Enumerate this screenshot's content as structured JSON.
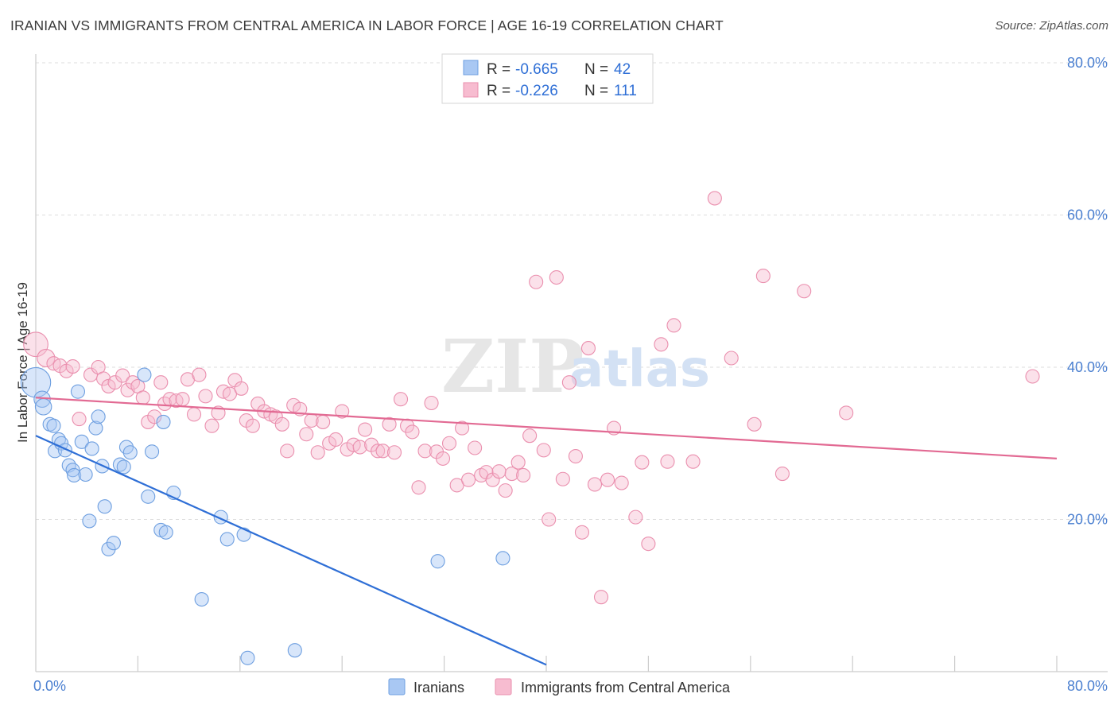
{
  "header": {
    "title": "IRANIAN VS IMMIGRANTS FROM CENTRAL AMERICA IN LABOR FORCE | AGE 16-19 CORRELATION CHART",
    "source": "Source: ZipAtlas.com"
  },
  "watermark": {
    "part1": "ZIP",
    "part2": "atlas"
  },
  "colors": {
    "iranians_fill": "#a9c8f3",
    "iranians_stroke": "#6e9fe0",
    "iranians_line": "#2f6fd6",
    "central_fill": "#f7bcd0",
    "central_stroke": "#ea8fae",
    "central_line": "#e26a93",
    "grid": "#dddddd",
    "tick_text": "#4a7fd0"
  },
  "legend": {
    "rows": [
      {
        "r_label": "R = ",
        "r_value": "-0.665",
        "n_label": "N = ",
        "n_value": "42"
      },
      {
        "r_label": "R = ",
        "r_value": "-0.226",
        "n_label": "N = ",
        "n_value": "111"
      }
    ]
  },
  "chart_data": {
    "type": "scatter",
    "title": "IRANIAN VS IMMIGRANTS FROM CENTRAL AMERICA IN LABOR FORCE | AGE 16-19 CORRELATION CHART",
    "xlabel": "",
    "ylabel": "In Labor Force | Age 16-19",
    "xlim": [
      0,
      80
    ],
    "ylim": [
      0,
      80
    ],
    "x_tick_labels": [
      "0.0%",
      "80.0%"
    ],
    "y_ticks": [
      20,
      40,
      60,
      80
    ],
    "y_tick_labels": [
      "20.0%",
      "40.0%",
      "60.0%",
      "80.0%"
    ],
    "grid": true,
    "legend_position": "top-center",
    "series": [
      {
        "name": "Iranians",
        "r": -0.665,
        "n": 42,
        "trend": {
          "x": [
            0,
            40
          ],
          "y": [
            31,
            0.9
          ]
        },
        "points": [
          {
            "x": 0.0,
            "y": 38.0,
            "s": 2.2
          },
          {
            "x": 0.5,
            "y": 35.8,
            "s": 1.2
          },
          {
            "x": 0.6,
            "y": 34.8,
            "s": 1.2
          },
          {
            "x": 1.1,
            "y": 32.5,
            "s": 1
          },
          {
            "x": 1.4,
            "y": 32.3,
            "s": 1
          },
          {
            "x": 1.5,
            "y": 29.0,
            "s": 1
          },
          {
            "x": 1.8,
            "y": 30.5,
            "s": 1
          },
          {
            "x": 2.0,
            "y": 30.0,
            "s": 1
          },
          {
            "x": 2.3,
            "y": 29.1,
            "s": 1
          },
          {
            "x": 2.6,
            "y": 27.1,
            "s": 1
          },
          {
            "x": 2.9,
            "y": 26.5,
            "s": 1
          },
          {
            "x": 3.0,
            "y": 25.8,
            "s": 1
          },
          {
            "x": 3.3,
            "y": 36.8,
            "s": 1
          },
          {
            "x": 3.6,
            "y": 30.2,
            "s": 1
          },
          {
            "x": 3.9,
            "y": 25.9,
            "s": 1
          },
          {
            "x": 4.2,
            "y": 19.8,
            "s": 1
          },
          {
            "x": 4.4,
            "y": 29.3,
            "s": 1
          },
          {
            "x": 4.7,
            "y": 32.0,
            "s": 1
          },
          {
            "x": 4.9,
            "y": 33.5,
            "s": 1
          },
          {
            "x": 5.2,
            "y": 27.0,
            "s": 1
          },
          {
            "x": 5.4,
            "y": 21.7,
            "s": 1
          },
          {
            "x": 5.7,
            "y": 16.1,
            "s": 1
          },
          {
            "x": 6.1,
            "y": 16.9,
            "s": 1
          },
          {
            "x": 6.6,
            "y": 27.2,
            "s": 1
          },
          {
            "x": 6.9,
            "y": 26.9,
            "s": 1
          },
          {
            "x": 7.1,
            "y": 29.5,
            "s": 1
          },
          {
            "x": 7.4,
            "y": 28.8,
            "s": 1
          },
          {
            "x": 8.5,
            "y": 39.0,
            "s": 1
          },
          {
            "x": 8.8,
            "y": 23.0,
            "s": 1
          },
          {
            "x": 9.1,
            "y": 28.9,
            "s": 1
          },
          {
            "x": 9.8,
            "y": 18.6,
            "s": 1
          },
          {
            "x": 10.0,
            "y": 32.8,
            "s": 1
          },
          {
            "x": 10.2,
            "y": 18.3,
            "s": 1
          },
          {
            "x": 10.8,
            "y": 23.5,
            "s": 1
          },
          {
            "x": 13.0,
            "y": 9.5,
            "s": 1
          },
          {
            "x": 14.5,
            "y": 20.3,
            "s": 1
          },
          {
            "x": 15.0,
            "y": 17.4,
            "s": 1
          },
          {
            "x": 16.3,
            "y": 18.0,
            "s": 1
          },
          {
            "x": 16.6,
            "y": 1.8,
            "s": 1
          },
          {
            "x": 20.3,
            "y": 2.8,
            "s": 1
          },
          {
            "x": 31.5,
            "y": 14.5,
            "s": 1
          },
          {
            "x": 36.6,
            "y": 14.9,
            "s": 1
          }
        ]
      },
      {
        "name": "Immigrants from Central America",
        "r": -0.226,
        "n": 111,
        "trend": {
          "x": [
            0,
            80
          ],
          "y": [
            36,
            28
          ]
        },
        "points": [
          {
            "x": 0.0,
            "y": 43.0,
            "s": 1.8
          },
          {
            "x": 0.8,
            "y": 41.2,
            "s": 1.3
          },
          {
            "x": 1.4,
            "y": 40.5,
            "s": 1
          },
          {
            "x": 1.9,
            "y": 40.2,
            "s": 1
          },
          {
            "x": 2.4,
            "y": 39.5,
            "s": 1
          },
          {
            "x": 2.9,
            "y": 40.1,
            "s": 1
          },
          {
            "x": 3.4,
            "y": 33.2,
            "s": 1
          },
          {
            "x": 4.3,
            "y": 39.0,
            "s": 1
          },
          {
            "x": 4.9,
            "y": 40.0,
            "s": 1
          },
          {
            "x": 5.3,
            "y": 38.5,
            "s": 1
          },
          {
            "x": 5.7,
            "y": 37.5,
            "s": 1
          },
          {
            "x": 6.2,
            "y": 38.0,
            "s": 1
          },
          {
            "x": 6.8,
            "y": 38.9,
            "s": 1
          },
          {
            "x": 7.2,
            "y": 37.0,
            "s": 1
          },
          {
            "x": 7.6,
            "y": 38.0,
            "s": 1
          },
          {
            "x": 8.0,
            "y": 37.5,
            "s": 1
          },
          {
            "x": 8.4,
            "y": 36.0,
            "s": 1
          },
          {
            "x": 8.8,
            "y": 32.8,
            "s": 1
          },
          {
            "x": 9.3,
            "y": 33.5,
            "s": 1
          },
          {
            "x": 9.8,
            "y": 38.0,
            "s": 1
          },
          {
            "x": 10.1,
            "y": 35.2,
            "s": 1
          },
          {
            "x": 10.5,
            "y": 35.8,
            "s": 1
          },
          {
            "x": 11.0,
            "y": 35.6,
            "s": 1
          },
          {
            "x": 11.5,
            "y": 35.8,
            "s": 1
          },
          {
            "x": 11.9,
            "y": 38.4,
            "s": 1
          },
          {
            "x": 12.4,
            "y": 33.8,
            "s": 1
          },
          {
            "x": 12.8,
            "y": 39.0,
            "s": 1
          },
          {
            "x": 13.3,
            "y": 36.2,
            "s": 1
          },
          {
            "x": 13.8,
            "y": 32.3,
            "s": 1
          },
          {
            "x": 14.3,
            "y": 34.0,
            "s": 1
          },
          {
            "x": 14.7,
            "y": 36.8,
            "s": 1
          },
          {
            "x": 15.2,
            "y": 36.5,
            "s": 1
          },
          {
            "x": 15.6,
            "y": 38.3,
            "s": 1
          },
          {
            "x": 16.1,
            "y": 37.2,
            "s": 1
          },
          {
            "x": 16.5,
            "y": 33.0,
            "s": 1
          },
          {
            "x": 17.0,
            "y": 32.3,
            "s": 1
          },
          {
            "x": 17.4,
            "y": 35.2,
            "s": 1
          },
          {
            "x": 17.9,
            "y": 34.2,
            "s": 1
          },
          {
            "x": 18.4,
            "y": 33.8,
            "s": 1
          },
          {
            "x": 18.8,
            "y": 33.5,
            "s": 1
          },
          {
            "x": 19.3,
            "y": 32.5,
            "s": 1
          },
          {
            "x": 19.7,
            "y": 29.0,
            "s": 1
          },
          {
            "x": 20.2,
            "y": 35.0,
            "s": 1
          },
          {
            "x": 20.7,
            "y": 34.5,
            "s": 1
          },
          {
            "x": 21.2,
            "y": 31.2,
            "s": 1
          },
          {
            "x": 21.6,
            "y": 33.0,
            "s": 1
          },
          {
            "x": 22.1,
            "y": 28.8,
            "s": 1
          },
          {
            "x": 22.5,
            "y": 32.8,
            "s": 1
          },
          {
            "x": 23.0,
            "y": 30.0,
            "s": 1
          },
          {
            "x": 23.5,
            "y": 30.5,
            "s": 1
          },
          {
            "x": 24.0,
            "y": 34.2,
            "s": 1
          },
          {
            "x": 24.4,
            "y": 29.2,
            "s": 1
          },
          {
            "x": 24.9,
            "y": 29.8,
            "s": 1
          },
          {
            "x": 25.4,
            "y": 29.5,
            "s": 1
          },
          {
            "x": 25.8,
            "y": 31.8,
            "s": 1
          },
          {
            "x": 26.3,
            "y": 29.8,
            "s": 1
          },
          {
            "x": 26.8,
            "y": 29.0,
            "s": 1
          },
          {
            "x": 27.2,
            "y": 29.0,
            "s": 1
          },
          {
            "x": 27.7,
            "y": 32.5,
            "s": 1
          },
          {
            "x": 28.1,
            "y": 28.8,
            "s": 1
          },
          {
            "x": 28.6,
            "y": 35.8,
            "s": 1
          },
          {
            "x": 29.1,
            "y": 32.3,
            "s": 1
          },
          {
            "x": 29.5,
            "y": 31.5,
            "s": 1
          },
          {
            "x": 30.0,
            "y": 24.2,
            "s": 1
          },
          {
            "x": 30.5,
            "y": 29.0,
            "s": 1
          },
          {
            "x": 31.0,
            "y": 35.3,
            "s": 1
          },
          {
            "x": 31.4,
            "y": 28.9,
            "s": 1
          },
          {
            "x": 31.9,
            "y": 28.0,
            "s": 1
          },
          {
            "x": 32.4,
            "y": 30.0,
            "s": 1
          },
          {
            "x": 33.0,
            "y": 24.5,
            "s": 1
          },
          {
            "x": 33.4,
            "y": 32.0,
            "s": 1
          },
          {
            "x": 33.9,
            "y": 25.2,
            "s": 1
          },
          {
            "x": 34.4,
            "y": 29.4,
            "s": 1
          },
          {
            "x": 34.9,
            "y": 25.8,
            "s": 1
          },
          {
            "x": 35.3,
            "y": 26.2,
            "s": 1
          },
          {
            "x": 35.8,
            "y": 25.2,
            "s": 1
          },
          {
            "x": 36.3,
            "y": 26.3,
            "s": 1
          },
          {
            "x": 36.8,
            "y": 23.8,
            "s": 1
          },
          {
            "x": 37.3,
            "y": 26.0,
            "s": 1
          },
          {
            "x": 37.8,
            "y": 27.5,
            "s": 1
          },
          {
            "x": 38.2,
            "y": 25.8,
            "s": 1
          },
          {
            "x": 38.7,
            "y": 31.0,
            "s": 1
          },
          {
            "x": 39.2,
            "y": 51.2,
            "s": 1
          },
          {
            "x": 39.8,
            "y": 29.1,
            "s": 1
          },
          {
            "x": 40.2,
            "y": 20.0,
            "s": 1
          },
          {
            "x": 40.8,
            "y": 51.8,
            "s": 1
          },
          {
            "x": 41.3,
            "y": 25.3,
            "s": 1
          },
          {
            "x": 41.8,
            "y": 38.0,
            "s": 1
          },
          {
            "x": 42.3,
            "y": 28.3,
            "s": 1
          },
          {
            "x": 42.8,
            "y": 18.3,
            "s": 1
          },
          {
            "x": 43.3,
            "y": 42.5,
            "s": 1
          },
          {
            "x": 43.8,
            "y": 24.6,
            "s": 1
          },
          {
            "x": 44.3,
            "y": 9.8,
            "s": 1
          },
          {
            "x": 44.8,
            "y": 25.2,
            "s": 1
          },
          {
            "x": 45.3,
            "y": 32.0,
            "s": 1
          },
          {
            "x": 45.9,
            "y": 24.8,
            "s": 1
          },
          {
            "x": 47.0,
            "y": 20.3,
            "s": 1
          },
          {
            "x": 47.5,
            "y": 27.5,
            "s": 1
          },
          {
            "x": 48.0,
            "y": 16.8,
            "s": 1
          },
          {
            "x": 49.0,
            "y": 43.0,
            "s": 1
          },
          {
            "x": 49.5,
            "y": 27.6,
            "s": 1
          },
          {
            "x": 50.0,
            "y": 45.5,
            "s": 1
          },
          {
            "x": 51.5,
            "y": 27.6,
            "s": 1
          },
          {
            "x": 53.2,
            "y": 62.2,
            "s": 1
          },
          {
            "x": 54.5,
            "y": 41.2,
            "s": 1
          },
          {
            "x": 56.3,
            "y": 32.5,
            "s": 1
          },
          {
            "x": 57.0,
            "y": 52.0,
            "s": 1
          },
          {
            "x": 58.5,
            "y": 26.0,
            "s": 1
          },
          {
            "x": 60.2,
            "y": 50.0,
            "s": 1
          },
          {
            "x": 63.5,
            "y": 34.0,
            "s": 1
          },
          {
            "x": 78.1,
            "y": 38.8,
            "s": 1
          }
        ]
      }
    ]
  },
  "bottom_legend": {
    "items": [
      {
        "label": "Iranians"
      },
      {
        "label": "Immigrants from Central America"
      }
    ]
  }
}
